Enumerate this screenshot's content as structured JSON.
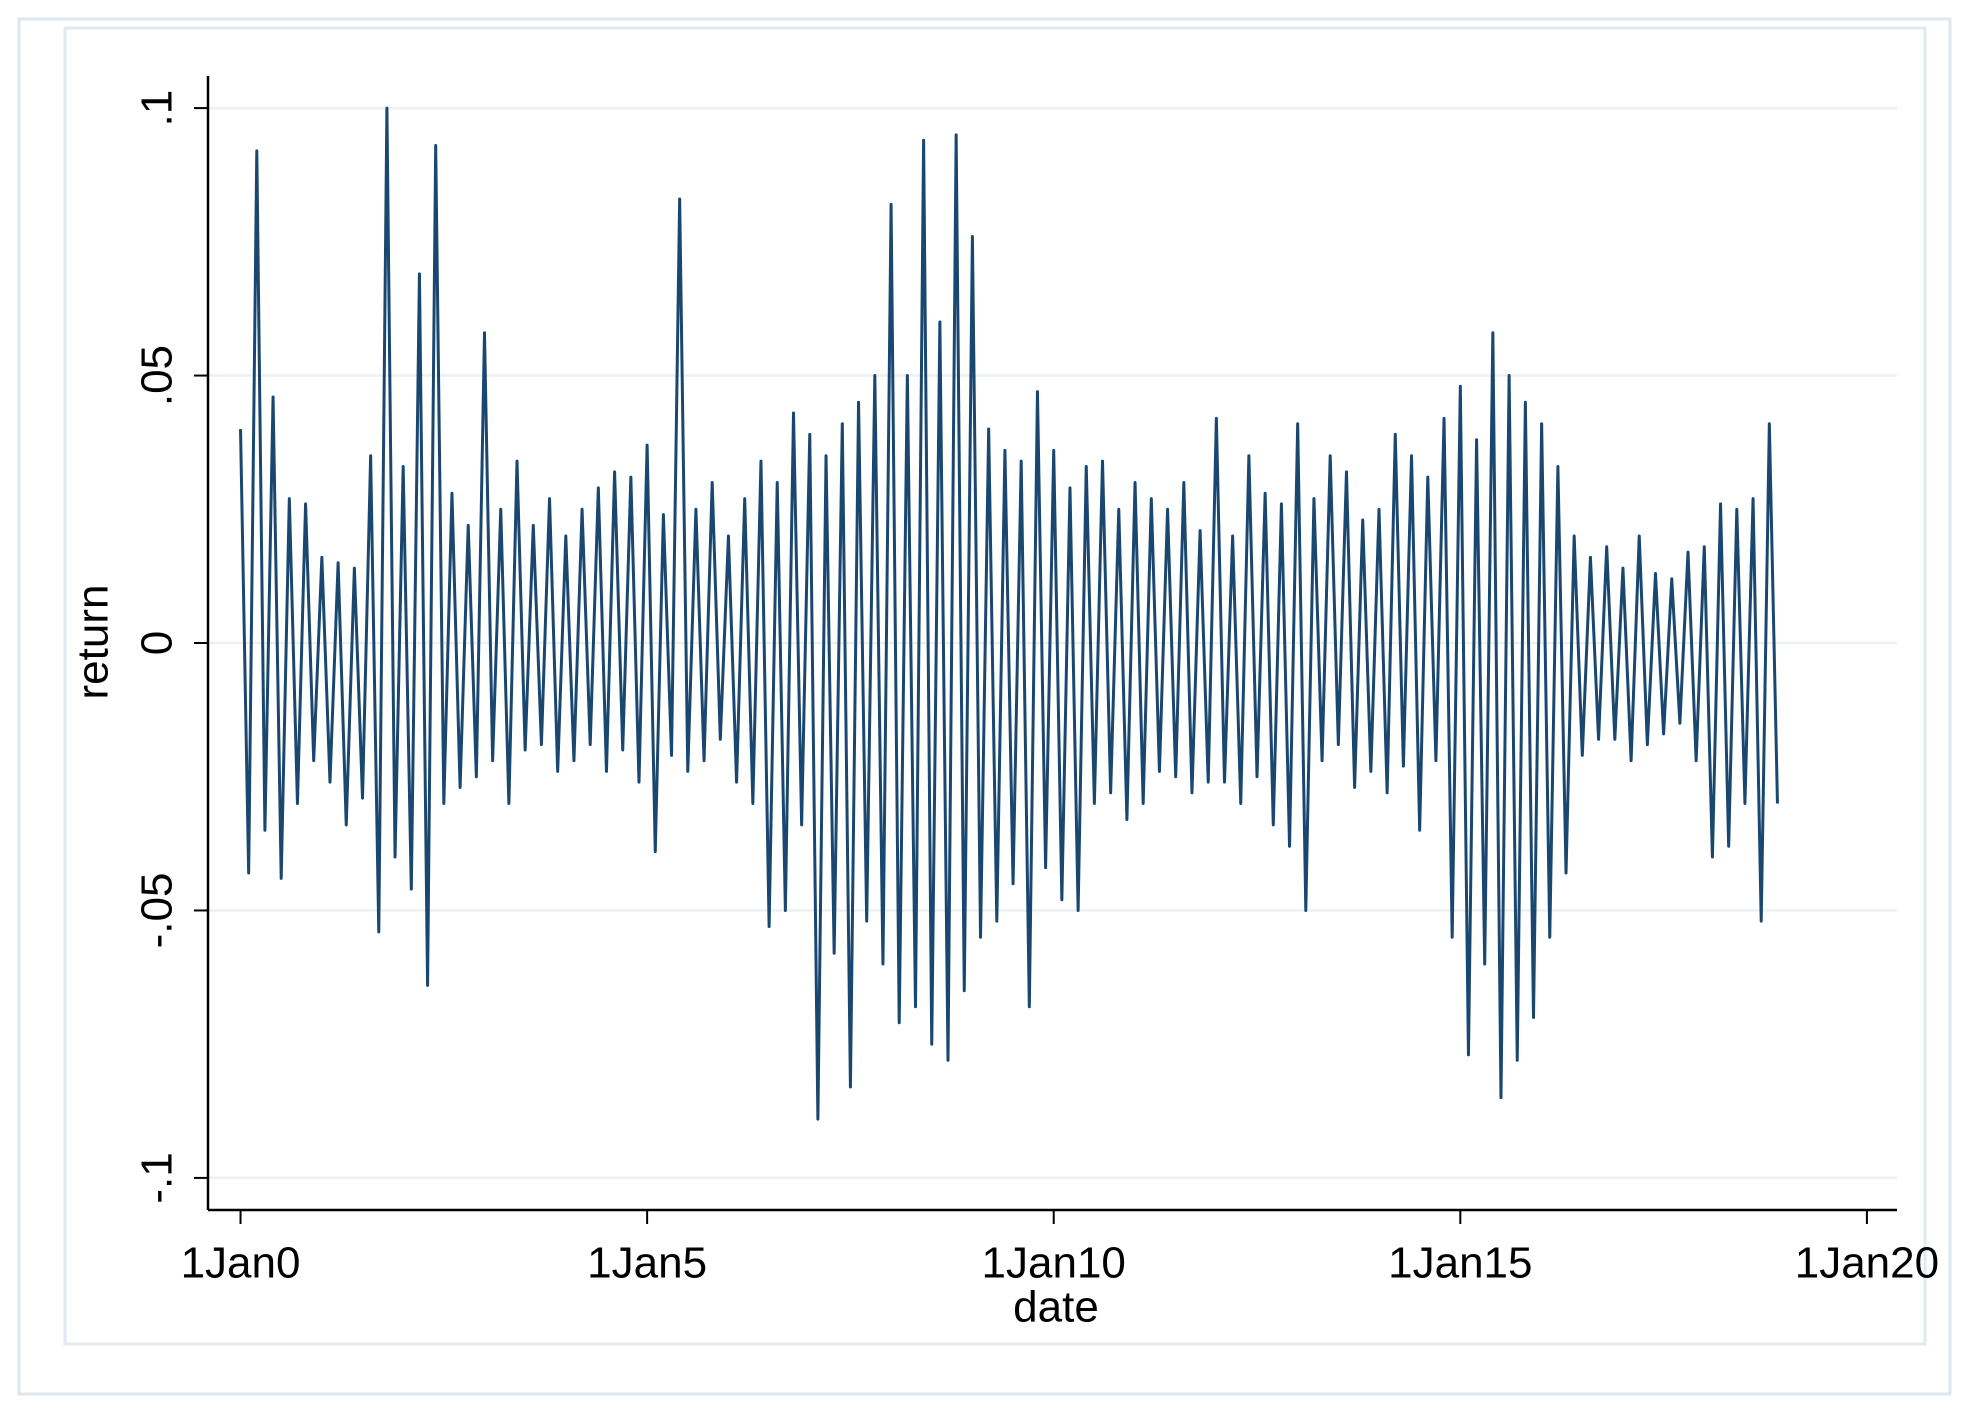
{
  "chart_data": {
    "type": "line",
    "x_label": "date",
    "y_label": "return",
    "x": [
      0.0,
      0.1,
      0.2,
      0.3,
      0.4,
      0.5,
      0.6,
      0.7,
      0.8,
      0.9,
      1.0,
      1.1,
      1.2,
      1.3,
      1.4,
      1.5,
      1.6,
      1.7,
      1.8,
      1.9,
      2.0,
      2.1,
      2.2,
      2.3,
      2.4,
      2.5,
      2.6,
      2.7,
      2.8,
      2.9,
      3.0,
      3.1,
      3.2,
      3.3,
      3.4,
      3.5,
      3.6,
      3.7,
      3.8,
      3.9,
      4.0,
      4.1,
      4.2,
      4.3,
      4.4,
      4.5,
      4.6,
      4.7,
      4.8,
      4.9,
      5.0,
      5.1,
      5.2,
      5.3,
      5.4,
      5.5,
      5.6,
      5.7,
      5.8,
      5.9,
      6.0,
      6.1,
      6.2,
      6.3,
      6.4,
      6.5,
      6.6,
      6.7,
      6.8,
      6.9,
      7.0,
      7.1,
      7.2,
      7.3,
      7.4,
      7.5,
      7.6,
      7.7,
      7.8,
      7.9,
      8.0,
      8.1,
      8.2,
      8.3,
      8.4,
      8.5,
      8.6,
      8.7,
      8.8,
      8.9,
      9.0,
      9.1,
      9.2,
      9.3,
      9.4,
      9.5,
      9.6,
      9.7,
      9.8,
      9.9,
      10.0,
      10.1,
      10.2,
      10.3,
      10.4,
      10.5,
      10.6,
      10.7,
      10.8,
      10.9,
      11.0,
      11.1,
      11.2,
      11.3,
      11.4,
      11.5,
      11.6,
      11.7,
      11.8,
      11.9,
      12.0,
      12.1,
      12.2,
      12.3,
      12.4,
      12.5,
      12.6,
      12.7,
      12.8,
      12.9,
      13.0,
      13.1,
      13.2,
      13.3,
      13.4,
      13.5,
      13.6,
      13.7,
      13.8,
      13.9,
      14.0,
      14.1,
      14.2,
      14.3,
      14.4,
      14.5,
      14.6,
      14.7,
      14.8,
      14.9,
      15.0,
      15.1,
      15.2,
      15.3,
      15.4,
      15.5,
      15.6,
      15.7,
      15.8,
      15.9,
      16.0,
      16.1,
      16.2,
      16.3,
      16.4,
      16.5,
      16.6,
      16.7,
      16.8,
      16.9,
      17.0,
      17.1,
      17.2,
      17.3,
      17.4,
      17.5,
      17.6,
      17.7,
      17.8,
      17.9,
      18.0,
      18.1,
      18.2,
      18.3,
      18.4,
      18.5,
      18.6,
      18.7,
      18.8,
      18.9
    ],
    "values": [
      0.04,
      -0.043,
      0.092,
      -0.035,
      0.046,
      -0.044,
      0.027,
      -0.03,
      0.026,
      -0.022,
      0.016,
      -0.026,
      0.015,
      -0.034,
      0.014,
      -0.029,
      0.035,
      -0.054,
      0.1,
      -0.04,
      0.033,
      -0.046,
      0.069,
      -0.064,
      0.093,
      -0.03,
      0.028,
      -0.027,
      0.022,
      -0.025,
      0.058,
      -0.022,
      0.025,
      -0.03,
      0.034,
      -0.02,
      0.022,
      -0.019,
      0.027,
      -0.024,
      0.02,
      -0.022,
      0.025,
      -0.019,
      0.029,
      -0.024,
      0.032,
      -0.02,
      0.031,
      -0.026,
      0.037,
      -0.039,
      0.024,
      -0.021,
      0.083,
      -0.024,
      0.025,
      -0.022,
      0.03,
      -0.018,
      0.02,
      -0.026,
      0.027,
      -0.03,
      0.034,
      -0.053,
      0.03,
      -0.05,
      0.043,
      -0.034,
      0.039,
      -0.089,
      0.035,
      -0.058,
      0.041,
      -0.083,
      0.045,
      -0.052,
      0.05,
      -0.06,
      0.082,
      -0.071,
      0.05,
      -0.068,
      0.094,
      -0.075,
      0.06,
      -0.078,
      0.095,
      -0.065,
      0.076,
      -0.055,
      0.04,
      -0.052,
      0.036,
      -0.045,
      0.034,
      -0.068,
      0.047,
      -0.042,
      0.036,
      -0.048,
      0.029,
      -0.05,
      0.033,
      -0.03,
      0.034,
      -0.028,
      0.025,
      -0.033,
      0.03,
      -0.03,
      0.027,
      -0.024,
      0.025,
      -0.025,
      0.03,
      -0.028,
      0.021,
      -0.026,
      0.042,
      -0.026,
      0.02,
      -0.03,
      0.035,
      -0.025,
      0.028,
      -0.034,
      0.026,
      -0.038,
      0.041,
      -0.05,
      0.027,
      -0.022,
      0.035,
      -0.019,
      0.032,
      -0.027,
      0.023,
      -0.024,
      0.025,
      -0.028,
      0.039,
      -0.023,
      0.035,
      -0.035,
      0.031,
      -0.022,
      0.042,
      -0.055,
      0.048,
      -0.077,
      0.038,
      -0.06,
      0.058,
      -0.085,
      0.05,
      -0.078,
      0.045,
      -0.07,
      0.041,
      -0.055,
      0.033,
      -0.043,
      0.02,
      -0.021,
      0.016,
      -0.018,
      0.018,
      -0.018,
      0.014,
      -0.022,
      0.02,
      -0.019,
      0.013,
      -0.017,
      0.012,
      -0.015,
      0.017,
      -0.022,
      0.018,
      -0.04,
      0.026,
      -0.038,
      0.025,
      -0.03,
      0.027,
      -0.052,
      0.041,
      -0.03
    ],
    "color": "#1a476f",
    "xlim": [
      -0.4,
      20.37
    ],
    "ylim": [
      -0.106,
      0.106
    ],
    "xticks": [
      {
        "value": 0,
        "label": "1Jan0"
      },
      {
        "value": 5,
        "label": "1Jan5"
      },
      {
        "value": 10,
        "label": "1Jan10"
      },
      {
        "value": 15,
        "label": "1Jan15"
      },
      {
        "value": 20,
        "label": "1Jan20"
      }
    ],
    "yticks": [
      {
        "value": -0.1,
        "label": "-.1"
      },
      {
        "value": -0.05,
        "label": "-.05"
      },
      0,
      {
        "value": 0.05,
        "label": ".05"
      },
      {
        "value": 0.1,
        "label": ".1"
      }
    ],
    "grid": true
  }
}
